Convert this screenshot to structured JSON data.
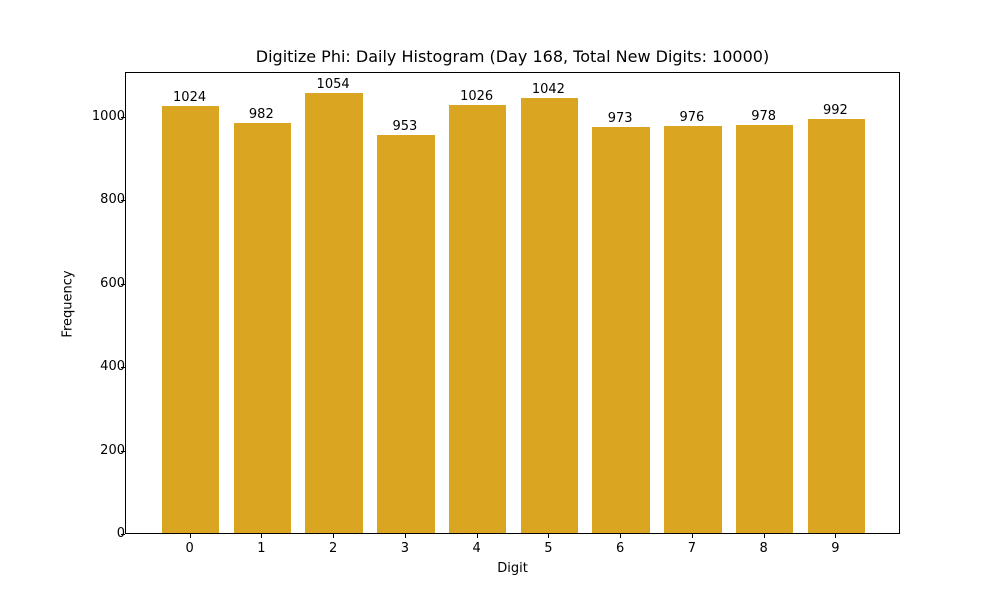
{
  "chart_data": {
    "type": "bar",
    "title": "Digitize Phi: Daily Histogram (Day 168, Total New Digits: 10000)",
    "xlabel": "Digit",
    "ylabel": "Frequency",
    "categories": [
      "0",
      "1",
      "2",
      "3",
      "4",
      "5",
      "6",
      "7",
      "8",
      "9"
    ],
    "values": [
      1024,
      982,
      1054,
      953,
      1026,
      1042,
      973,
      976,
      978,
      992
    ],
    "data_labels": [
      "1024",
      "982",
      "1054",
      "953",
      "1026",
      "1042",
      "973",
      "976",
      "978",
      "992"
    ],
    "yticks": [
      "0",
      "200",
      "400",
      "600",
      "800",
      "1000"
    ],
    "ytick_values": [
      0,
      200,
      400,
      600,
      800,
      1000
    ],
    "ylim": [
      0,
      1107
    ],
    "xlim": [
      -0.9,
      9.9
    ],
    "grid": false,
    "legend": null,
    "bar_color": "#DAA520"
  }
}
